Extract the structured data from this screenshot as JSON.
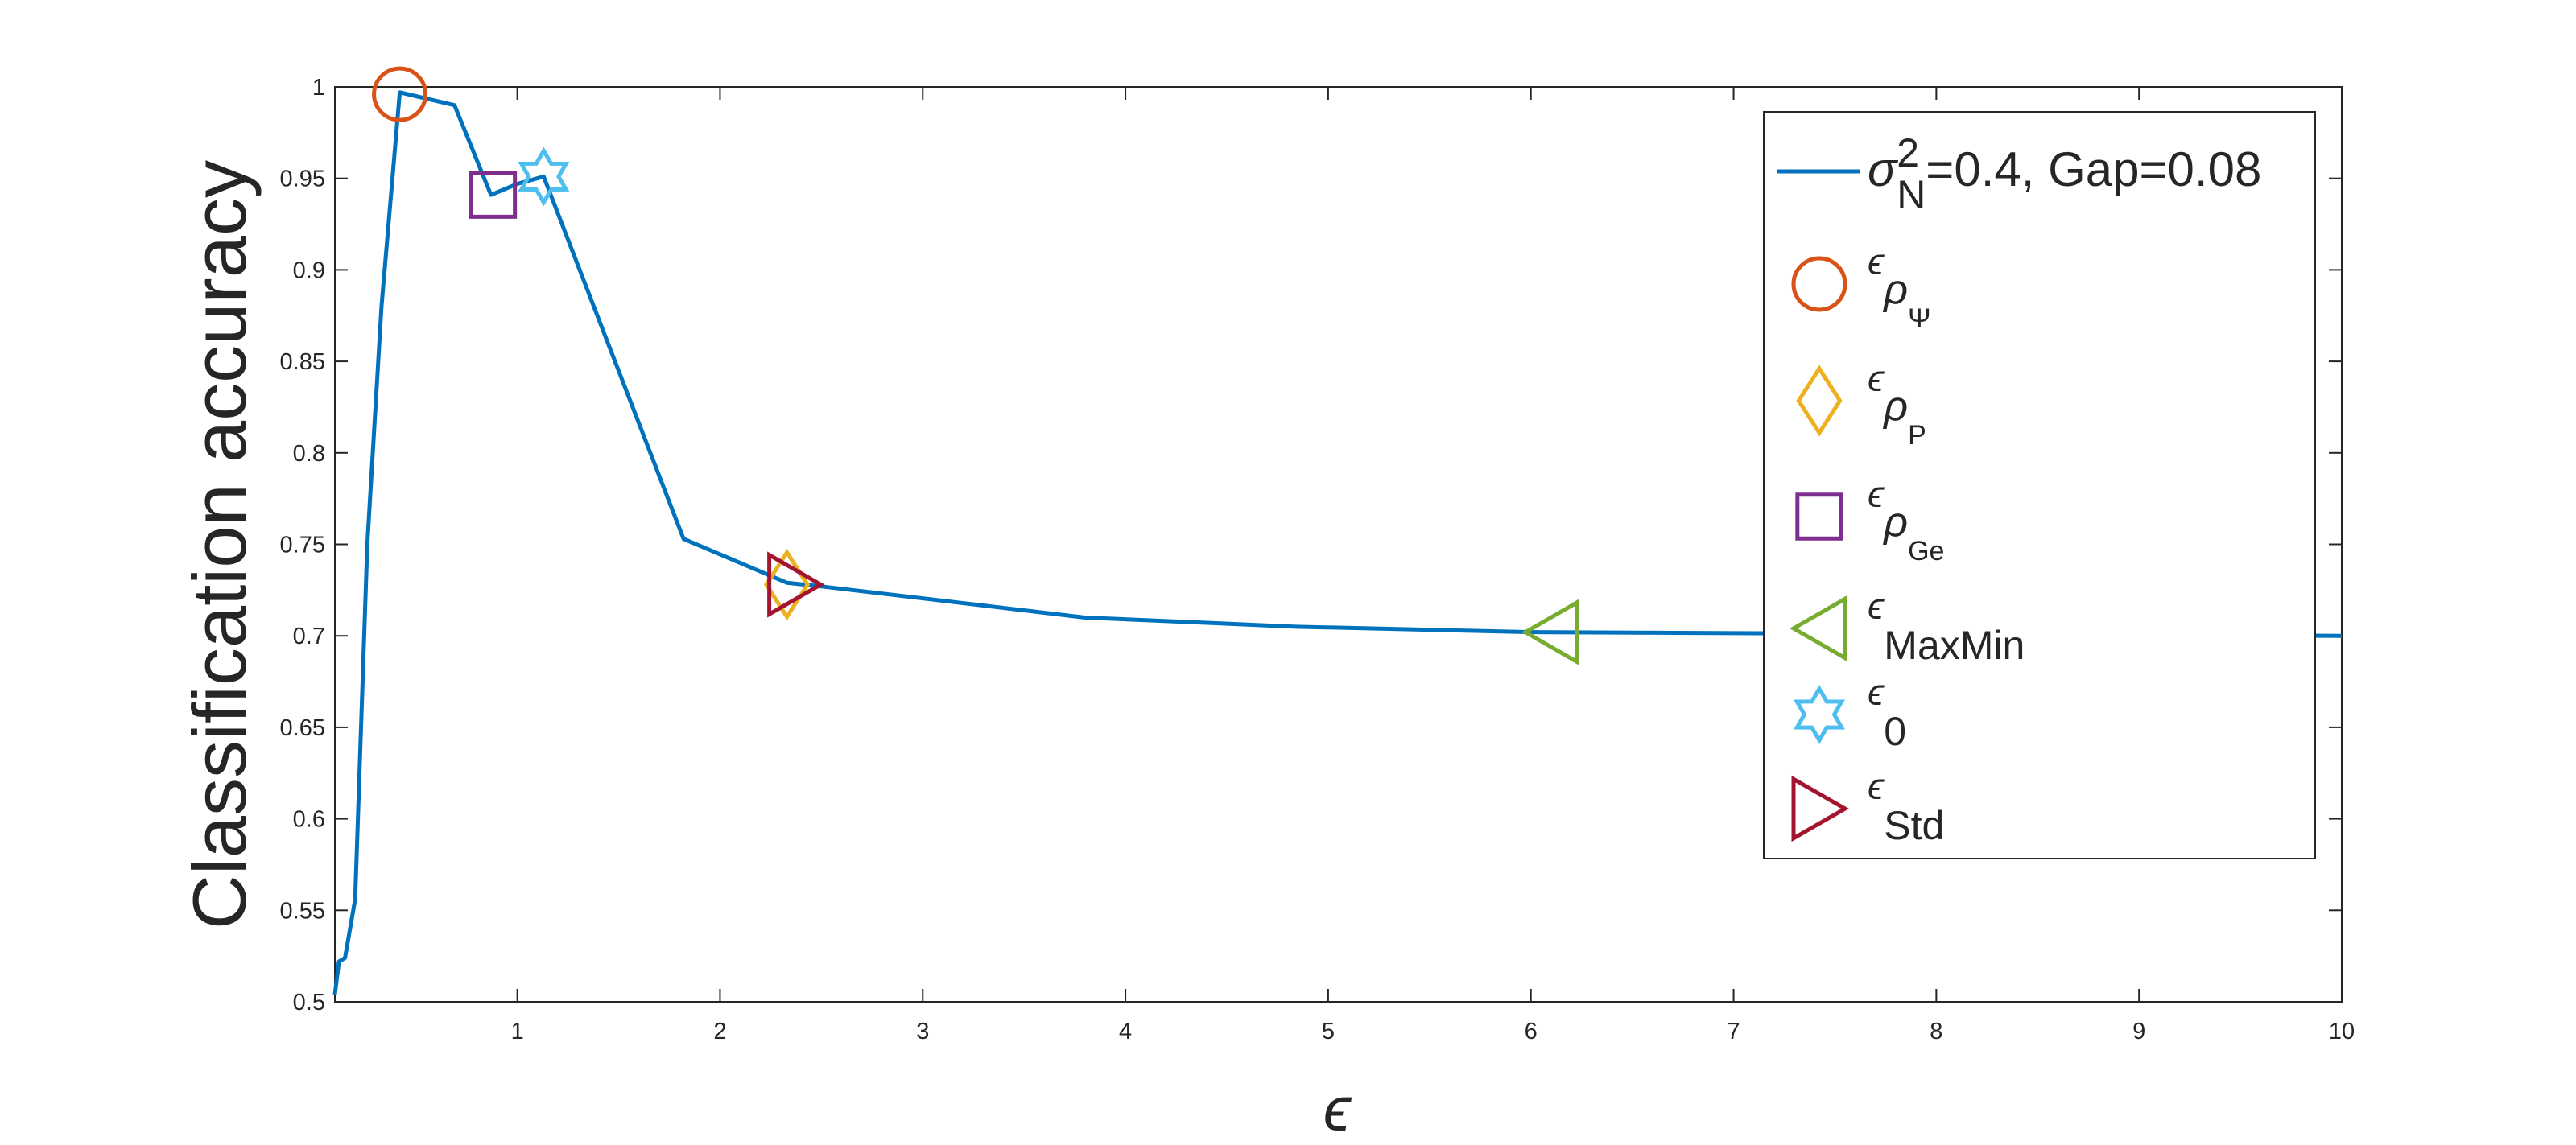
{
  "chart_data": {
    "type": "line",
    "xlabel": "ϵ",
    "ylabel": "Classification accuracy",
    "xlim": [
      0.1,
      10
    ],
    "ylim": [
      0.5,
      1
    ],
    "xticks": [
      1,
      2,
      3,
      4,
      5,
      6,
      7,
      8,
      9,
      10
    ],
    "yticks": [
      0.5,
      0.55,
      0.6,
      0.65,
      0.7,
      0.75,
      0.8,
      0.85,
      0.9,
      0.95,
      1
    ],
    "legend": "upper right",
    "series": [
      {
        "name": {
          "sym": "σ",
          "sub": "N",
          "sup": "2",
          "rest": "=0.4, Gap=0.08"
        },
        "color": "#0072bd",
        "x": [
          0.1,
          0.12,
          0.15,
          0.2,
          0.26,
          0.33,
          0.42,
          0.69,
          0.87,
          1.0,
          1.13,
          1.44,
          1.82,
          2.33,
          2.5,
          3.8,
          4.84,
          6.0,
          10
        ],
        "values": [
          0.504,
          0.522,
          0.524,
          0.556,
          0.75,
          0.88,
          0.997,
          0.99,
          0.941,
          0.947,
          0.951,
          0.862,
          0.753,
          0.729,
          0.727,
          0.71,
          0.705,
          0.702,
          0.7
        ]
      }
    ],
    "markers": [
      {
        "label": {
          "base": "ϵ",
          "sub": "ρ",
          "subsub": "Ψ"
        },
        "marker": "circle",
        "color": "#d95319",
        "x": 0.42,
        "y": 0.996
      },
      {
        "label": {
          "base": "ϵ",
          "sub": "ρ",
          "subsub": "P"
        },
        "marker": "diamond",
        "color": "#edb120",
        "x": 2.33,
        "y": 0.728
      },
      {
        "label": {
          "base": "ϵ",
          "sub": "ρ",
          "subsub": "Ge"
        },
        "marker": "square",
        "color": "#7e2f8e",
        "x": 0.88,
        "y": 0.941
      },
      {
        "label": {
          "base": "ϵ",
          "sub": "MaxMin"
        },
        "marker": "triangle-left",
        "color": "#77ac30",
        "x": 6.1,
        "y": 0.702
      },
      {
        "label": {
          "base": "ϵ",
          "sub": "0"
        },
        "marker": "hexagram",
        "color": "#4dbeee",
        "x": 1.13,
        "y": 0.951
      },
      {
        "label": {
          "base": "ϵ",
          "sub": "Std"
        },
        "marker": "triangle-right",
        "color": "#a2142f",
        "x": 2.37,
        "y": 0.728
      }
    ]
  }
}
